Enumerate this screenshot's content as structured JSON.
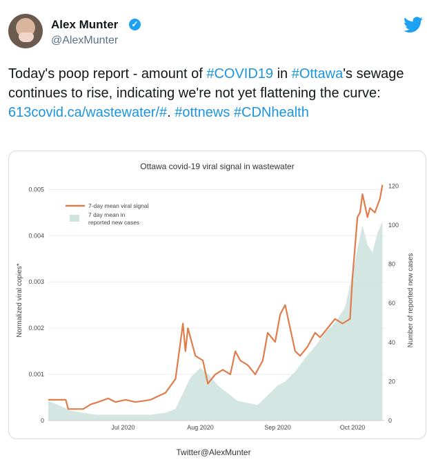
{
  "tweet": {
    "author_name": "Alex Munter",
    "author_handle": "@AlexMunter",
    "verified_icon": "verified-badge-icon",
    "platform_icon": "twitter-bird-icon",
    "text_segments": [
      {
        "t": "Today's poop report - amount of ",
        "k": "text"
      },
      {
        "t": "#COVID19",
        "k": "tag"
      },
      {
        "t": " in ",
        "k": "text"
      },
      {
        "t": "#Ottawa",
        "k": "tag"
      },
      {
        "t": "'s sewage continues to rise, indicating we're not yet flattening the curve: ",
        "k": "text"
      },
      {
        "t": "613covid.ca/wastewater/#",
        "k": "link"
      },
      {
        "t": ". ",
        "k": "text"
      },
      {
        "t": "#ottnews",
        "k": "tag"
      },
      {
        "t": " ",
        "k": "text"
      },
      {
        "t": "#CDNhealth",
        "k": "tag"
      }
    ]
  },
  "caption": "Twitter@AlexMunter",
  "colors": {
    "line": "#e07b4a",
    "area": "#cfe3df",
    "link": "#1b95e0"
  },
  "chart_data": {
    "type": "line",
    "title": "Ottawa covid-19 viral signal in wastewater",
    "ylabel": "Normalized viral copies*",
    "y2label": "Number of reported new cases",
    "xlim": [
      "2020-06-01",
      "2020-10-14"
    ],
    "ylim": [
      0,
      0.0052
    ],
    "y2lim": [
      0,
      123
    ],
    "y_ticks": [
      "0",
      "0.001",
      "0.002",
      "0.003",
      "0.004",
      "0.005"
    ],
    "y_tick_values": [
      0,
      0.001,
      0.002,
      0.003,
      0.004,
      0.005
    ],
    "y2_ticks": [
      "0",
      "20",
      "40",
      "60",
      "80",
      "100",
      "120"
    ],
    "y2_tick_values": [
      0,
      20,
      40,
      60,
      80,
      100,
      120
    ],
    "x_ticks": [
      "Jul 2020",
      "Aug 2020",
      "Sep 2020",
      "Oct 2020"
    ],
    "x_tick_values": [
      "2020-07-01",
      "2020-08-01",
      "2020-09-01",
      "2020-10-01"
    ],
    "legend": [
      "7-day mean viral signal",
      "7 day mean in reported new cases"
    ],
    "legend_position": "top-left",
    "grid": "horizontal",
    "series": [
      {
        "name": "7-day mean viral signal",
        "axis": "left",
        "style": "line",
        "x": [
          "2020-06-01",
          "2020-06-08",
          "2020-06-09",
          "2020-06-15",
          "2020-06-18",
          "2020-06-21",
          "2020-06-25",
          "2020-06-28",
          "2020-07-02",
          "2020-07-06",
          "2020-07-12",
          "2020-07-18",
          "2020-07-22",
          "2020-07-25",
          "2020-07-26",
          "2020-07-27",
          "2020-07-28",
          "2020-07-30",
          "2020-08-02",
          "2020-08-04",
          "2020-08-07",
          "2020-08-10",
          "2020-08-13",
          "2020-08-15",
          "2020-08-17",
          "2020-08-20",
          "2020-08-23",
          "2020-08-26",
          "2020-08-28",
          "2020-08-31",
          "2020-09-02",
          "2020-09-04",
          "2020-09-06",
          "2020-09-08",
          "2020-09-10",
          "2020-09-13",
          "2020-09-16",
          "2020-09-18",
          "2020-09-21",
          "2020-09-24",
          "2020-09-27",
          "2020-09-30",
          "2020-10-01",
          "2020-10-03",
          "2020-10-04",
          "2020-10-05",
          "2020-10-07",
          "2020-10-08",
          "2020-10-10",
          "2020-10-12",
          "2020-10-13"
        ],
        "values": [
          0.00045,
          0.00045,
          0.00025,
          0.00025,
          0.00035,
          0.0004,
          0.00048,
          0.0004,
          0.00045,
          0.0004,
          0.00045,
          0.0006,
          0.0009,
          0.0021,
          0.0015,
          0.002,
          0.0018,
          0.0014,
          0.0013,
          0.0008,
          0.001,
          0.0011,
          0.001,
          0.0015,
          0.0013,
          0.0012,
          0.001,
          0.0013,
          0.0019,
          0.0017,
          0.0023,
          0.0025,
          0.002,
          0.0015,
          0.0014,
          0.0016,
          0.0019,
          0.0018,
          0.002,
          0.0022,
          0.0021,
          0.0022,
          0.0031,
          0.0044,
          0.0045,
          0.0049,
          0.0044,
          0.0046,
          0.0045,
          0.0048,
          0.0051
        ]
      },
      {
        "name": "7 day mean in reported new cases",
        "axis": "right",
        "style": "area",
        "x": [
          "2020-06-01",
          "2020-06-05",
          "2020-06-10",
          "2020-06-15",
          "2020-06-20",
          "2020-06-25",
          "2020-07-01",
          "2020-07-06",
          "2020-07-12",
          "2020-07-18",
          "2020-07-22",
          "2020-07-25",
          "2020-07-28",
          "2020-08-01",
          "2020-08-04",
          "2020-08-08",
          "2020-08-12",
          "2020-08-16",
          "2020-08-20",
          "2020-08-24",
          "2020-08-28",
          "2020-09-01",
          "2020-09-04",
          "2020-09-08",
          "2020-09-12",
          "2020-09-16",
          "2020-09-20",
          "2020-09-24",
          "2020-09-28",
          "2020-10-01",
          "2020-10-03",
          "2020-10-05",
          "2020-10-07",
          "2020-10-09",
          "2020-10-11",
          "2020-10-13"
        ],
        "values": [
          10,
          8,
          5,
          4,
          3,
          3,
          3,
          3,
          3,
          4,
          6,
          14,
          22,
          27,
          24,
          18,
          14,
          10,
          9,
          8,
          13,
          18,
          20,
          25,
          32,
          38,
          45,
          50,
          58,
          75,
          88,
          100,
          90,
          86,
          96,
          102
        ]
      }
    ]
  }
}
